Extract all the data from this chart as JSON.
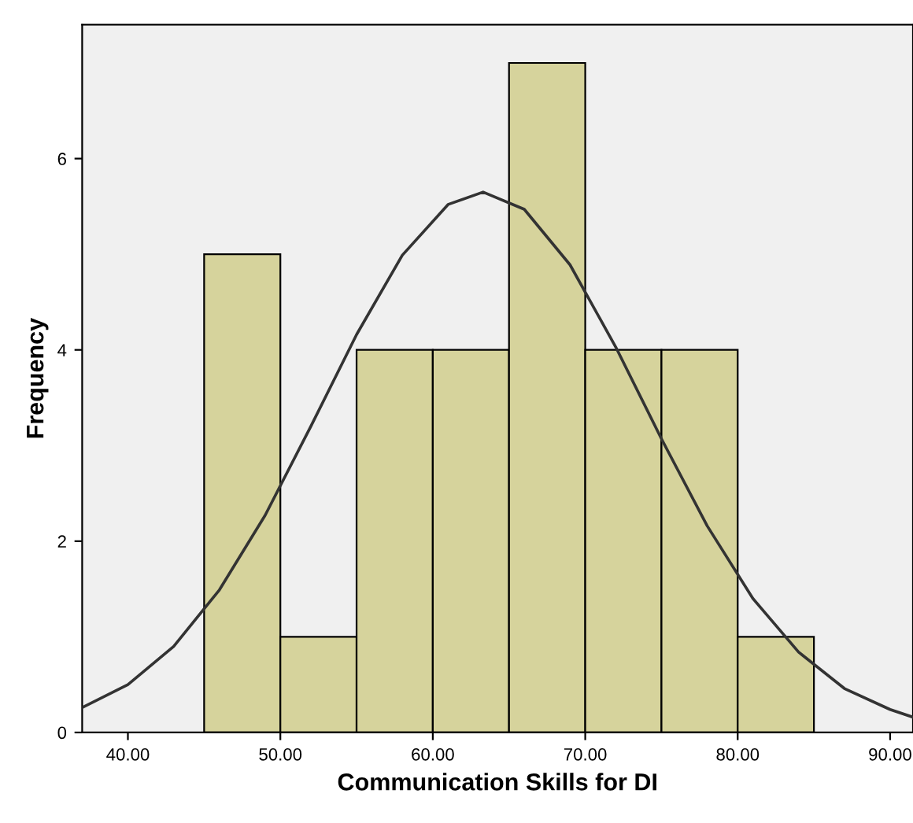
{
  "chart_data": {
    "type": "histogram",
    "xlabel": "Communication Skills for DI",
    "ylabel": "Frequency",
    "bins": [
      45,
      50,
      55,
      60,
      65,
      70,
      75,
      80,
      85
    ],
    "values": [
      5,
      1,
      4,
      4,
      7,
      4,
      4,
      1
    ],
    "color": "#d6d39c",
    "series": [
      {
        "type": "line",
        "color": "#333333",
        "x": [
          37,
          40,
          43,
          46,
          49,
          52,
          55,
          58,
          61,
          63.3,
          66,
          69,
          72,
          75,
          78,
          81,
          84,
          87,
          90,
          91.5
        ],
        "values": [
          0.26,
          0.5,
          0.9,
          1.49,
          2.27,
          3.2,
          4.16,
          4.99,
          5.52,
          5.65,
          5.47,
          4.89,
          4.03,
          3.07,
          2.16,
          1.4,
          0.84,
          0.46,
          0.24,
          0.16
        ]
      }
    ],
    "xlim": [
      37,
      91.5
    ],
    "ylim": [
      0,
      7.4
    ],
    "xticks": [
      {
        "value": 40,
        "label": "40.00"
      },
      {
        "value": 50,
        "label": "50.00"
      },
      {
        "value": 60,
        "label": "60.00"
      },
      {
        "value": 70,
        "label": "70.00"
      },
      {
        "value": 80,
        "label": "80.00"
      },
      {
        "value": 90,
        "label": "90.00"
      }
    ],
    "yticks": [
      0,
      2,
      4,
      6
    ],
    "grid": false,
    "legend": false
  }
}
